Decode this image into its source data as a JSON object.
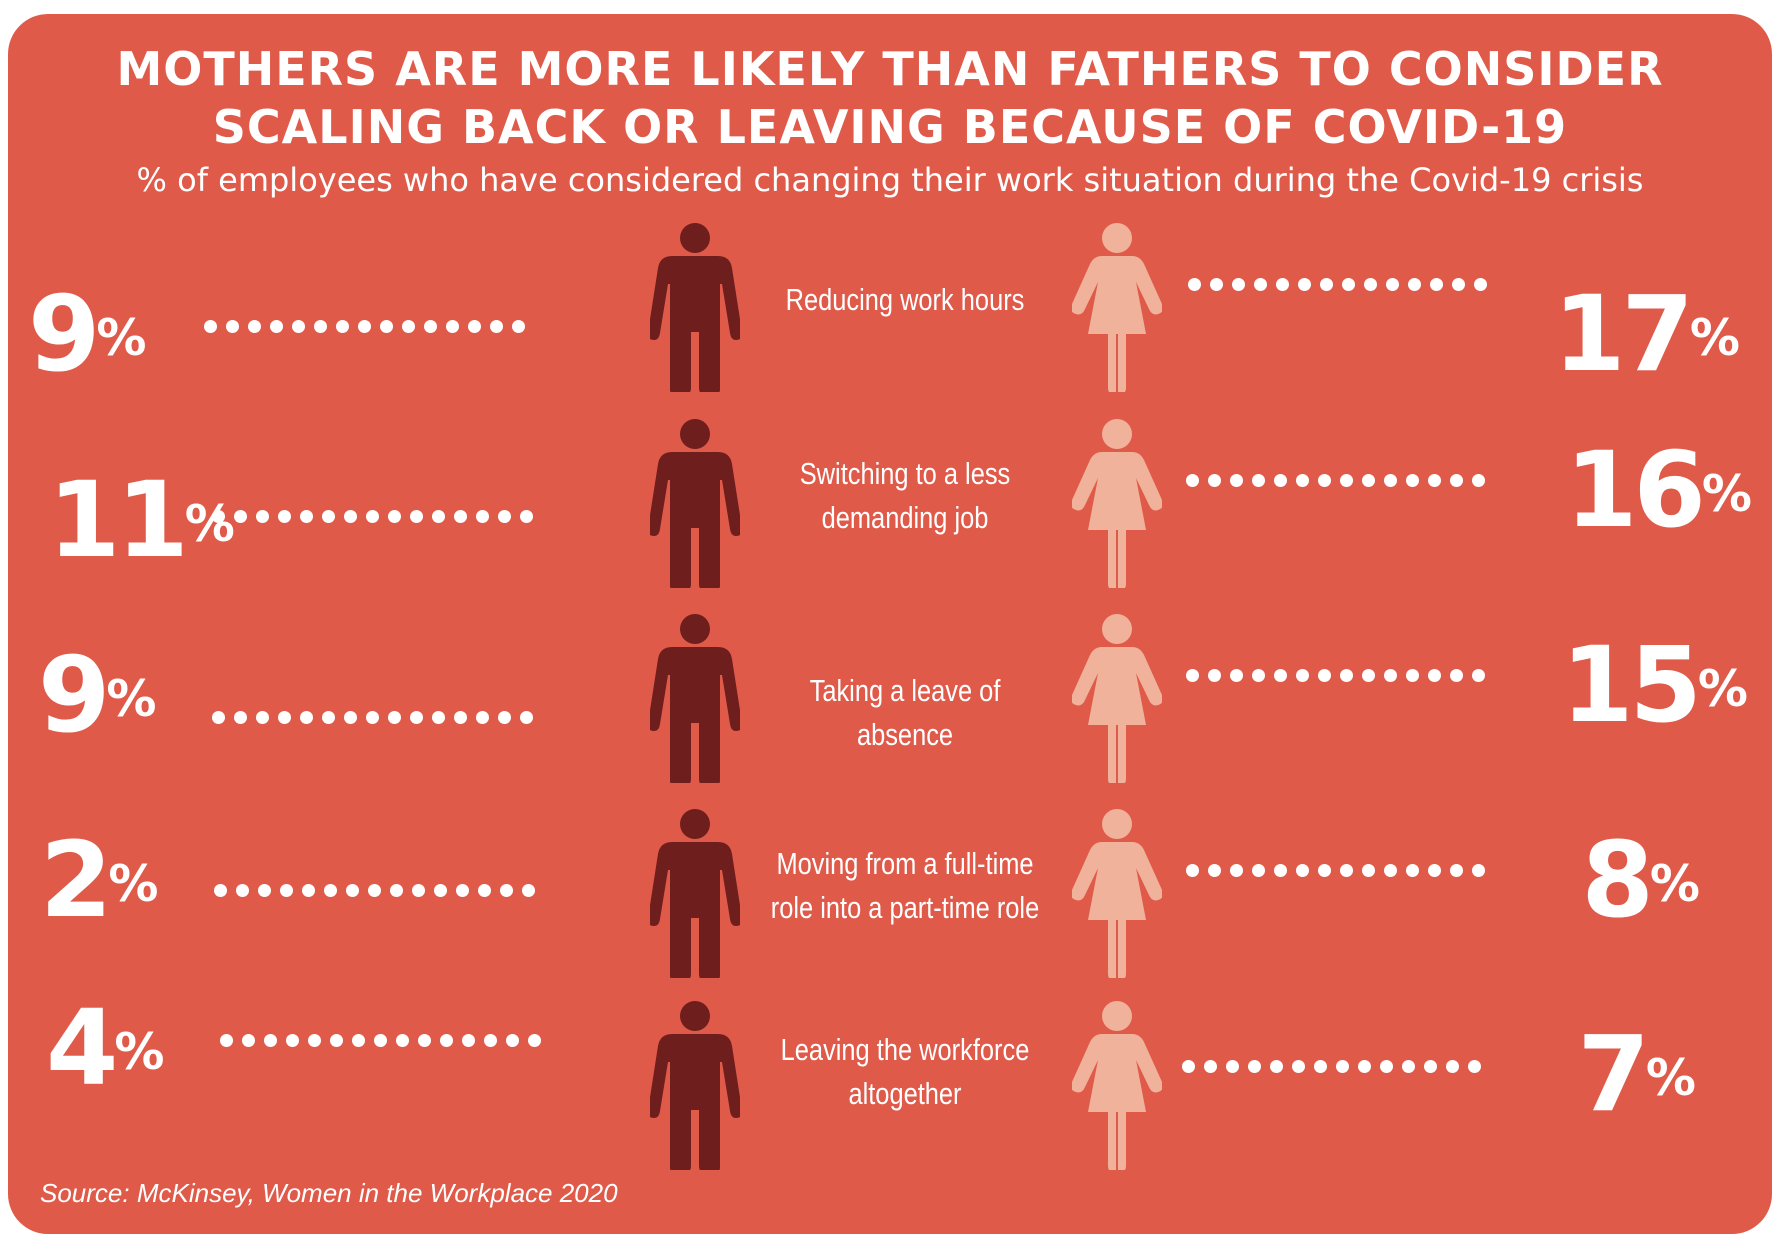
{
  "title_line1": "MOTHERS ARE MORE LIKELY THAN FATHERS TO CONSIDER",
  "title_line2": "SCALING BACK OR LEAVING BECAUSE OF COVID-19",
  "subtitle": "% of employees who have considered changing their work situation during the Covid-19 crisis",
  "source": "Source: McKinsey, Women in the Workplace 2020",
  "colors": {
    "background": "#e05a4a",
    "father": "#6e1e1c",
    "mother": "#f0b29a",
    "text": "#ffffff"
  },
  "icons": {
    "father": "man-icon",
    "mother": "woman-icon"
  },
  "percent_symbol": "%",
  "chart_data": {
    "type": "table",
    "categories": [
      "Reducing work hours",
      "Switching to a less demanding job",
      "Taking a leave of absence",
      "Moving from a full-time role into a part-time role",
      "Leaving the workforce altogether"
    ],
    "series": [
      {
        "values": [
          9,
          11,
          9,
          2,
          4
        ]
      },
      {
        "values": [
          17,
          16,
          15,
          8,
          7
        ]
      }
    ]
  },
  "rows": [
    {
      "label_lines": [
        "Reducing work hours"
      ],
      "father": "9",
      "mother": "17"
    },
    {
      "label_lines": [
        "Switching to a less",
        "demanding job"
      ],
      "father": "11",
      "mother": "16"
    },
    {
      "label_lines": [
        "Taking a leave of absence"
      ],
      "father": "9",
      "mother": "15"
    },
    {
      "label_lines": [
        "Moving from a full-time",
        "role into a part-time role"
      ],
      "father": "2",
      "mother": "8"
    },
    {
      "label_lines": [
        "Leaving the workforce",
        "altogether"
      ],
      "father": "4",
      "mother": "7"
    }
  ]
}
